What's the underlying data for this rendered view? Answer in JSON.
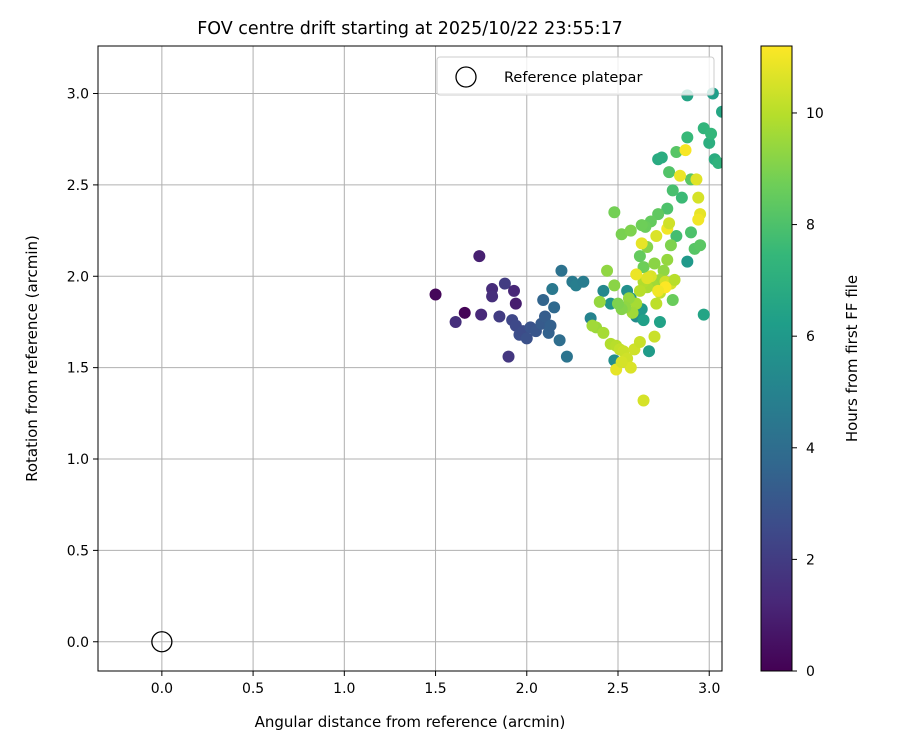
{
  "chart_data": {
    "type": "scatter",
    "title": "FOV centre drift starting at 2025/10/22 23:55:17",
    "xlabel": "Angular distance from reference (arcmin)",
    "ylabel": "Rotation from reference (arcmin)",
    "xlim": [
      -0.35,
      3.07
    ],
    "ylim": [
      -0.16,
      3.26
    ],
    "xticks": [
      0.0,
      0.5,
      1.0,
      1.5,
      2.0,
      2.5,
      3.0
    ],
    "xtick_labels": [
      "0.0",
      "0.5",
      "1.0",
      "1.5",
      "2.0",
      "2.5",
      "3.0"
    ],
    "yticks": [
      0.0,
      0.5,
      1.0,
      1.5,
      2.0,
      2.5,
      3.0
    ],
    "ytick_labels": [
      "0.0",
      "0.5",
      "1.0",
      "1.5",
      "2.0",
      "2.5",
      "3.0"
    ],
    "grid": true,
    "legend": {
      "placement": "top-right",
      "entries": [
        "Reference platepar"
      ]
    },
    "reference_point": {
      "x": 0.0,
      "y": 0.0,
      "label": "Reference platepar"
    },
    "colorbar": {
      "label": "Hours from first FF file",
      "range": [
        0,
        11.2
      ],
      "ticks": [
        0,
        2,
        4,
        6,
        8,
        10
      ],
      "tick_labels": [
        "0",
        "2",
        "4",
        "6",
        "8",
        "10"
      ],
      "colormap": [
        "#440154",
        "#482878",
        "#3e4989",
        "#31688e",
        "#26828e",
        "#1f9e89",
        "#35b779",
        "#6ece58",
        "#b5de2b",
        "#fde725"
      ]
    },
    "points": [
      [
        1.5,
        1.9,
        0.2
      ],
      [
        1.66,
        1.8,
        0.1
      ],
      [
        1.74,
        2.11,
        1.0
      ],
      [
        1.75,
        1.79,
        1.3
      ],
      [
        1.61,
        1.75,
        1.5
      ],
      [
        1.81,
        1.93,
        1.4
      ],
      [
        1.81,
        1.89,
        1.5
      ],
      [
        1.85,
        1.78,
        2.0
      ],
      [
        1.88,
        1.96,
        2.0
      ],
      [
        1.93,
        1.92,
        1.2
      ],
      [
        1.94,
        1.85,
        0.9
      ],
      [
        1.9,
        1.56,
        1.8
      ],
      [
        1.92,
        1.76,
        2.4
      ],
      [
        1.94,
        1.73,
        2.5
      ],
      [
        1.96,
        1.68,
        2.7
      ],
      [
        1.98,
        1.7,
        2.6
      ],
      [
        2.0,
        1.66,
        2.8
      ],
      [
        2.02,
        1.72,
        2.9
      ],
      [
        2.05,
        1.7,
        3.0
      ],
      [
        2.08,
        1.74,
        3.2
      ],
      [
        2.1,
        1.78,
        3.3
      ],
      [
        2.12,
        1.69,
        3.5
      ],
      [
        2.09,
        1.87,
        3.6
      ],
      [
        2.13,
        1.73,
        3.4
      ],
      [
        2.15,
        1.83,
        3.8
      ],
      [
        2.18,
        1.65,
        4.0
      ],
      [
        2.14,
        1.93,
        4.5
      ],
      [
        2.19,
        2.03,
        4.2
      ],
      [
        2.22,
        1.56,
        4.3
      ],
      [
        2.25,
        1.97,
        4.6
      ],
      [
        2.27,
        1.95,
        4.8
      ],
      [
        2.31,
        1.97,
        4.7
      ],
      [
        2.35,
        1.77,
        5.0
      ],
      [
        2.42,
        1.92,
        5.2
      ],
      [
        2.46,
        1.85,
        5.8
      ],
      [
        2.48,
        1.54,
        5.5
      ],
      [
        2.55,
        1.92,
        5.6
      ],
      [
        2.57,
        1.88,
        5.9
      ],
      [
        2.6,
        1.78,
        5.4
      ],
      [
        2.63,
        1.82,
        6.0
      ],
      [
        2.64,
        1.76,
        6.3
      ],
      [
        2.67,
        1.59,
        6.1
      ],
      [
        2.73,
        1.75,
        6.4
      ],
      [
        2.72,
        2.64,
        6.8
      ],
      [
        2.74,
        2.65,
        6.9
      ],
      [
        2.88,
        2.99,
        6.5
      ],
      [
        3.02,
        3.0,
        6.2
      ],
      [
        3.07,
        2.9,
        6.6
      ],
      [
        2.88,
        2.08,
        6.0
      ],
      [
        2.97,
        1.79,
        6.5
      ],
      [
        3.0,
        2.73,
        7.0
      ],
      [
        3.03,
        2.64,
        6.9
      ],
      [
        3.05,
        2.62,
        7.2
      ],
      [
        2.97,
        2.81,
        7.3
      ],
      [
        3.01,
        2.78,
        7.4
      ],
      [
        2.88,
        2.76,
        7.5
      ],
      [
        2.85,
        2.43,
        7.6
      ],
      [
        2.82,
        2.22,
        7.8
      ],
      [
        2.8,
        2.47,
        7.9
      ],
      [
        2.77,
        2.37,
        8.0
      ],
      [
        2.78,
        2.57,
        8.1
      ],
      [
        2.82,
        2.68,
        8.2
      ],
      [
        2.9,
        2.53,
        8.3
      ],
      [
        2.9,
        2.24,
        8.0
      ],
      [
        2.92,
        2.15,
        8.2
      ],
      [
        2.95,
        2.17,
        8.3
      ],
      [
        2.72,
        2.34,
        8.4
      ],
      [
        2.68,
        2.3,
        8.5
      ],
      [
        2.65,
        2.27,
        8.6
      ],
      [
        2.63,
        2.28,
        8.7
      ],
      [
        2.48,
        2.35,
        8.8
      ],
      [
        2.52,
        2.23,
        8.9
      ],
      [
        2.57,
        2.25,
        9.0
      ],
      [
        2.62,
        2.11,
        8.5
      ],
      [
        2.64,
        2.05,
        8.7
      ],
      [
        2.66,
        2.16,
        9.1
      ],
      [
        2.7,
        2.07,
        9.2
      ],
      [
        2.75,
        2.03,
        9.3
      ],
      [
        2.77,
        2.09,
        9.4
      ],
      [
        2.79,
        2.17,
        9.0
      ],
      [
        2.8,
        1.87,
        8.6
      ],
      [
        2.73,
        1.98,
        9.5
      ],
      [
        2.69,
        1.95,
        9.6
      ],
      [
        2.66,
        1.94,
        9.8
      ],
      [
        2.64,
        1.97,
        9.9
      ],
      [
        2.62,
        1.92,
        10.0
      ],
      [
        2.6,
        1.85,
        9.7
      ],
      [
        2.58,
        1.8,
        9.6
      ],
      [
        2.56,
        1.88,
        9.4
      ],
      [
        2.54,
        1.83,
        9.3
      ],
      [
        2.52,
        1.82,
        9.1
      ],
      [
        2.5,
        1.85,
        9.0
      ],
      [
        2.48,
        1.95,
        9.2
      ],
      [
        2.44,
        2.03,
        9.3
      ],
      [
        2.4,
        1.86,
        9.4
      ],
      [
        2.38,
        1.72,
        9.5
      ],
      [
        2.36,
        1.73,
        9.6
      ],
      [
        2.42,
        1.69,
        9.7
      ],
      [
        2.46,
        1.63,
        9.9
      ],
      [
        2.49,
        1.62,
        10.0
      ],
      [
        2.51,
        1.6,
        10.2
      ],
      [
        2.53,
        1.59,
        10.3
      ],
      [
        2.55,
        1.55,
        10.4
      ],
      [
        2.57,
        1.5,
        10.6
      ],
      [
        2.49,
        1.49,
        10.8
      ],
      [
        2.52,
        1.53,
        10.5
      ],
      [
        2.59,
        1.6,
        10.4
      ],
      [
        2.62,
        1.64,
        10.3
      ],
      [
        2.64,
        1.32,
        10.5
      ],
      [
        2.7,
        1.67,
        10.3
      ],
      [
        2.71,
        1.85,
        10.1
      ],
      [
        2.73,
        1.91,
        10.2
      ],
      [
        2.76,
        1.97,
        10.4
      ],
      [
        2.79,
        1.96,
        10.5
      ],
      [
        2.81,
        1.98,
        10.0
      ],
      [
        2.68,
        2.0,
        10.6
      ],
      [
        2.66,
        1.99,
        10.7
      ],
      [
        2.63,
        2.18,
        10.8
      ],
      [
        2.6,
        2.01,
        10.9
      ],
      [
        2.77,
        2.26,
        11.0
      ],
      [
        2.84,
        2.55,
        10.9
      ],
      [
        2.87,
        2.69,
        11.1
      ],
      [
        2.93,
        2.53,
        10.7
      ],
      [
        2.94,
        2.43,
        10.5
      ],
      [
        2.95,
        2.34,
        10.8
      ],
      [
        2.94,
        2.31,
        11.0
      ],
      [
        2.71,
        2.22,
        10.6
      ],
      [
        2.78,
        2.29,
        10.4
      ],
      [
        2.76,
        1.94,
        11.2
      ],
      [
        2.72,
        1.92,
        11.0
      ]
    ]
  }
}
